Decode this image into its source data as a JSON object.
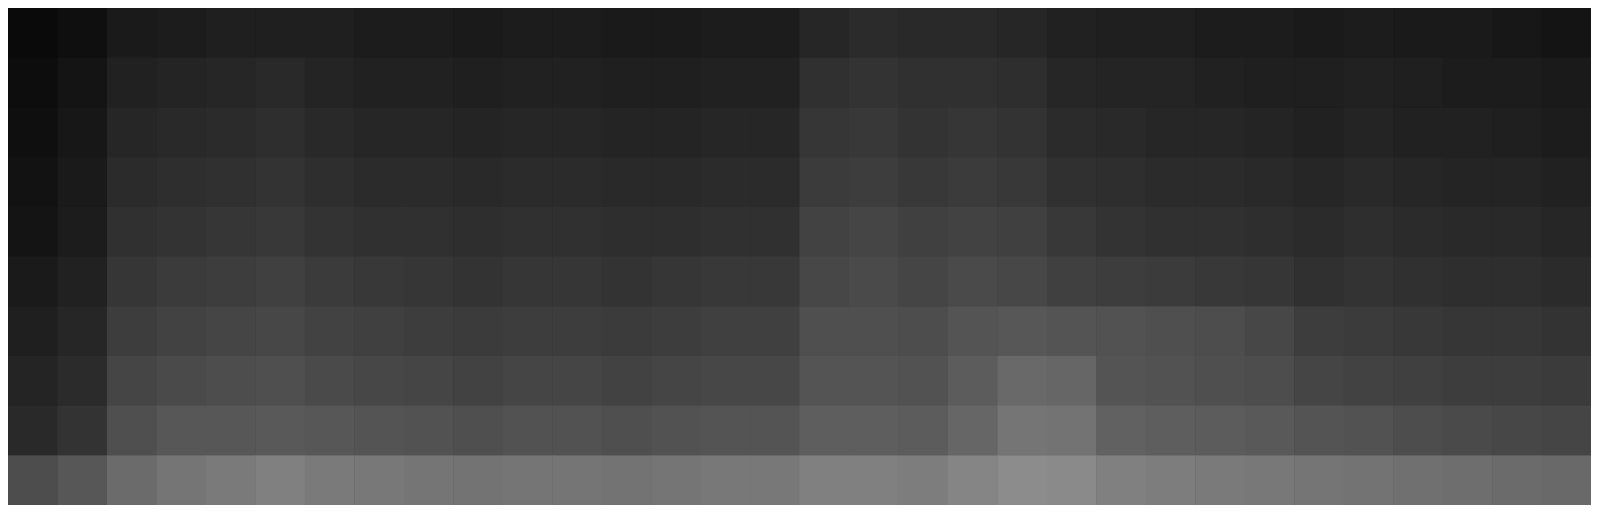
{
  "chart_data": {
    "type": "heatmap",
    "tick_labels": false,
    "color_range": [
      0,
      1
    ],
    "cells": [
      [
        0.04,
        0.06,
        0.1,
        0.11,
        0.12,
        0.12,
        0.12,
        0.11,
        0.11,
        0.1,
        0.11,
        0.11,
        0.1,
        0.1,
        0.11,
        0.11,
        0.15,
        0.17,
        0.16,
        0.16,
        0.15,
        0.13,
        0.12,
        0.12,
        0.11,
        0.11,
        0.1,
        0.11,
        0.1,
        0.1,
        0.09,
        0.08
      ],
      [
        0.05,
        0.08,
        0.13,
        0.14,
        0.15,
        0.16,
        0.14,
        0.13,
        0.13,
        0.12,
        0.13,
        0.13,
        0.12,
        0.12,
        0.13,
        0.13,
        0.19,
        0.2,
        0.19,
        0.19,
        0.18,
        0.15,
        0.14,
        0.14,
        0.13,
        0.12,
        0.12,
        0.13,
        0.12,
        0.11,
        0.11,
        0.1
      ],
      [
        0.06,
        0.09,
        0.15,
        0.16,
        0.17,
        0.18,
        0.16,
        0.15,
        0.15,
        0.14,
        0.15,
        0.15,
        0.14,
        0.14,
        0.15,
        0.15,
        0.21,
        0.22,
        0.2,
        0.21,
        0.2,
        0.17,
        0.16,
        0.15,
        0.15,
        0.14,
        0.13,
        0.14,
        0.13,
        0.13,
        0.12,
        0.11
      ],
      [
        0.07,
        0.1,
        0.17,
        0.18,
        0.19,
        0.2,
        0.18,
        0.17,
        0.17,
        0.16,
        0.17,
        0.17,
        0.16,
        0.16,
        0.17,
        0.17,
        0.23,
        0.24,
        0.22,
        0.23,
        0.22,
        0.19,
        0.18,
        0.17,
        0.17,
        0.16,
        0.15,
        0.16,
        0.15,
        0.14,
        0.14,
        0.13
      ],
      [
        0.08,
        0.11,
        0.19,
        0.2,
        0.21,
        0.22,
        0.2,
        0.19,
        0.19,
        0.18,
        0.19,
        0.19,
        0.18,
        0.18,
        0.19,
        0.19,
        0.26,
        0.27,
        0.25,
        0.26,
        0.25,
        0.22,
        0.2,
        0.19,
        0.19,
        0.18,
        0.17,
        0.18,
        0.17,
        0.16,
        0.16,
        0.15
      ],
      [
        0.1,
        0.13,
        0.21,
        0.23,
        0.24,
        0.25,
        0.23,
        0.22,
        0.21,
        0.2,
        0.21,
        0.21,
        0.2,
        0.21,
        0.22,
        0.22,
        0.28,
        0.29,
        0.27,
        0.29,
        0.28,
        0.25,
        0.24,
        0.23,
        0.22,
        0.21,
        0.19,
        0.2,
        0.19,
        0.18,
        0.18,
        0.17
      ],
      [
        0.12,
        0.15,
        0.24,
        0.26,
        0.27,
        0.28,
        0.26,
        0.25,
        0.24,
        0.23,
        0.24,
        0.24,
        0.23,
        0.24,
        0.25,
        0.25,
        0.31,
        0.31,
        0.3,
        0.33,
        0.34,
        0.33,
        0.32,
        0.31,
        0.3,
        0.28,
        0.24,
        0.23,
        0.22,
        0.21,
        0.21,
        0.2
      ],
      [
        0.14,
        0.17,
        0.27,
        0.29,
        0.3,
        0.31,
        0.29,
        0.28,
        0.27,
        0.26,
        0.27,
        0.27,
        0.26,
        0.27,
        0.28,
        0.28,
        0.33,
        0.33,
        0.32,
        0.36,
        0.41,
        0.4,
        0.33,
        0.32,
        0.31,
        0.3,
        0.27,
        0.26,
        0.25,
        0.24,
        0.24,
        0.23
      ],
      [
        0.16,
        0.2,
        0.31,
        0.34,
        0.34,
        0.35,
        0.34,
        0.33,
        0.32,
        0.31,
        0.32,
        0.32,
        0.31,
        0.32,
        0.33,
        0.33,
        0.37,
        0.37,
        0.36,
        0.4,
        0.46,
        0.45,
        0.38,
        0.37,
        0.36,
        0.35,
        0.33,
        0.32,
        0.3,
        0.29,
        0.28,
        0.27
      ],
      [
        0.3,
        0.34,
        0.42,
        0.46,
        0.48,
        0.5,
        0.48,
        0.47,
        0.46,
        0.45,
        0.46,
        0.46,
        0.45,
        0.46,
        0.47,
        0.47,
        0.5,
        0.5,
        0.49,
        0.52,
        0.55,
        0.54,
        0.5,
        0.49,
        0.48,
        0.47,
        0.46,
        0.45,
        0.44,
        0.43,
        0.42,
        0.41
      ]
    ]
  }
}
